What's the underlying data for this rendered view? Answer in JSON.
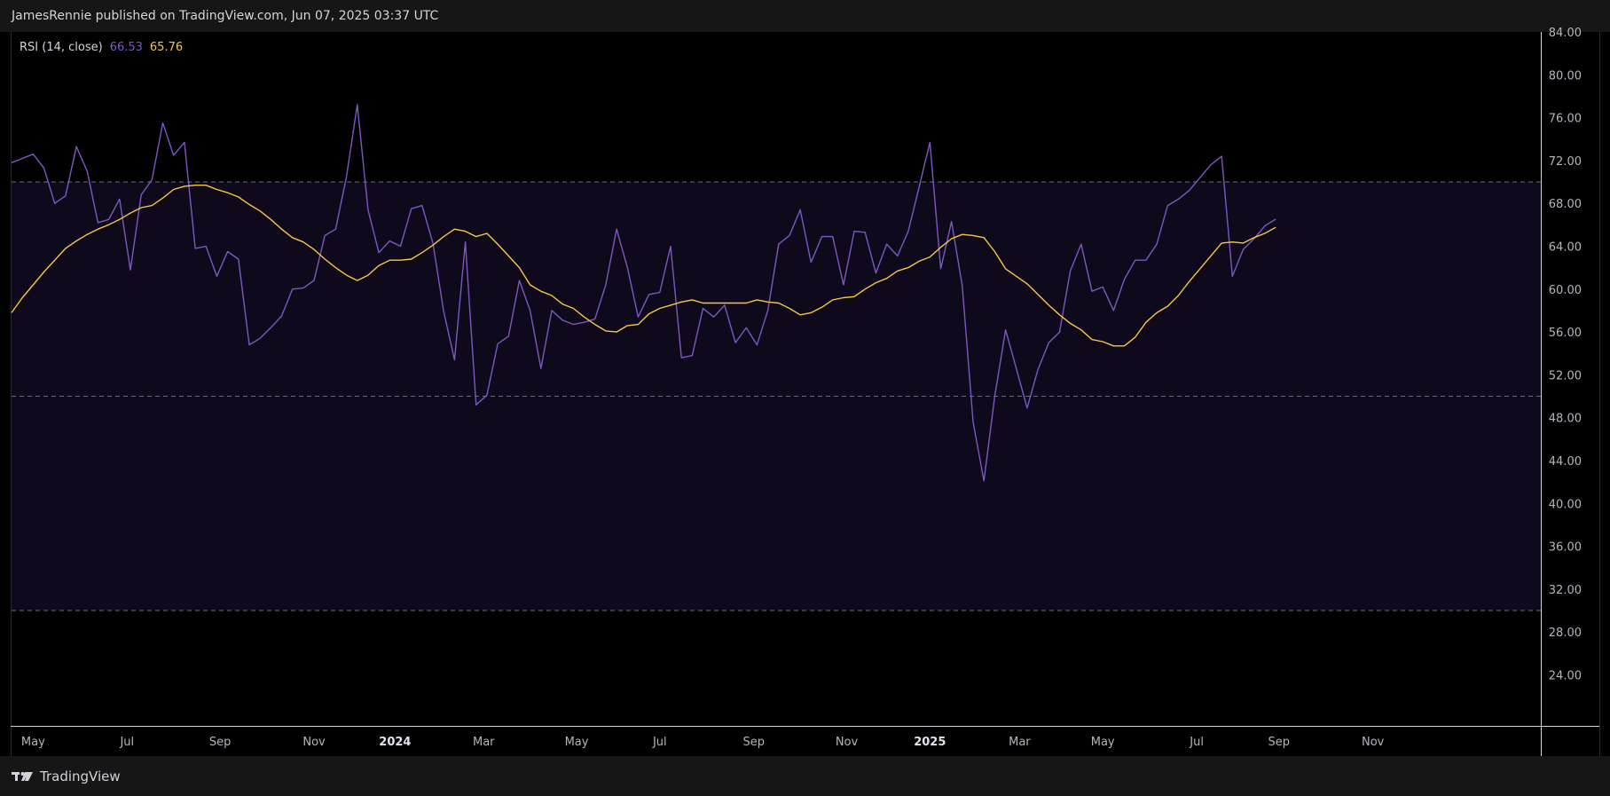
{
  "header": {
    "published": "JamesRennie published on TradingView.com, Jun 07, 2025 03:37 UTC"
  },
  "legend": {
    "name": "RSI (14, close)",
    "rsi_value": "66.53",
    "ma_value": "65.76"
  },
  "footer": {
    "brand": "TradingView",
    "logo_icon": "tradingview-logo-icon"
  },
  "colors": {
    "rsi": "#7e57c2",
    "ma": "#f7c744",
    "band_fill": "#0e0a1c",
    "bands": "#6e6a80",
    "background": "#000000"
  },
  "chart_data": {
    "type": "line",
    "title": "RSI (14, close)",
    "ylim": [
      22,
      85
    ],
    "y_ticks": [
      "84.00",
      "80.00",
      "76.00",
      "72.00",
      "68.00",
      "64.00",
      "60.00",
      "56.00",
      "52.00",
      "48.00",
      "44.00",
      "40.00",
      "36.00",
      "32.00",
      "28.00",
      "24.00"
    ],
    "x_ticks": [
      {
        "label": "May",
        "t": 2,
        "bold": false
      },
      {
        "label": "Jul",
        "t": 10.7,
        "bold": false
      },
      {
        "label": "Sep",
        "t": 19.3,
        "bold": false
      },
      {
        "label": "Nov",
        "t": 28,
        "bold": false
      },
      {
        "label": "2024",
        "t": 35.5,
        "bold": true
      },
      {
        "label": "Mar",
        "t": 43.7,
        "bold": false
      },
      {
        "label": "May",
        "t": 52.3,
        "bold": false
      },
      {
        "label": "Jul",
        "t": 60,
        "bold": false
      },
      {
        "label": "Sep",
        "t": 68.7,
        "bold": false
      },
      {
        "label": "Nov",
        "t": 77.3,
        "bold": false
      },
      {
        "label": "2025",
        "t": 85,
        "bold": true
      },
      {
        "label": "Mar",
        "t": 93.3,
        "bold": false
      },
      {
        "label": "May",
        "t": 101,
        "bold": false
      },
      {
        "label": "Jul",
        "t": 109.7,
        "bold": false
      },
      {
        "label": "Sep",
        "t": 117.3,
        "bold": false
      },
      {
        "label": "Nov",
        "t": 126,
        "bold": false
      }
    ],
    "levels": {
      "upper": 70,
      "middle": 50,
      "lower": 30
    },
    "series": [
      {
        "name": "RSI",
        "values": [
          71.8,
          72.2,
          72.6,
          71.3,
          68,
          68.7,
          73.3,
          71,
          66.2,
          66.5,
          68.4,
          61.8,
          68.8,
          70.2,
          75.5,
          72.5,
          73.7,
          63.8,
          64,
          61.2,
          63.5,
          62.8,
          54.8,
          55.4,
          56.4,
          57.5,
          60,
          60.1,
          60.8,
          65,
          65.6,
          70.5,
          77.2,
          67.4,
          63.4,
          64.5,
          64,
          67.5,
          67.8,
          64.3,
          57.9,
          53.4,
          64.4,
          49.2,
          50.1,
          54.9,
          55.6,
          60.8,
          58,
          52.6,
          58,
          57.1,
          56.7,
          56.9,
          57.2,
          60.4,
          65.6,
          62,
          57.4,
          59.5,
          59.7,
          64,
          53.6,
          53.8,
          58.2,
          57.4,
          58.5,
          55,
          56.4,
          54.8,
          58,
          64.2,
          65,
          67.4,
          62.5,
          64.9,
          64.9,
          60.4,
          65.4,
          65.3,
          61.5,
          64.2,
          63.1,
          65.4,
          69.5,
          73.7,
          61.9,
          66.3,
          60.3,
          47.6,
          42.1,
          50,
          56.2,
          52.6,
          48.9,
          52.5,
          55,
          56,
          61.7,
          64.2,
          59.8,
          60.2,
          58,
          60.9,
          62.7,
          62.7,
          64.2,
          67.8,
          68.4,
          69.2,
          70.4,
          71.6,
          72.4,
          61.2,
          63.7,
          64.7,
          65.9,
          66.53
        ]
      },
      {
        "name": "MA",
        "values": [
          57.8,
          59.2,
          60.4,
          61.6,
          62.7,
          63.8,
          64.5,
          65.1,
          65.6,
          66,
          66.5,
          67.1,
          67.6,
          67.8,
          68.5,
          69.3,
          69.6,
          69.7,
          69.7,
          69.3,
          69,
          68.6,
          67.9,
          67.3,
          66.5,
          65.6,
          64.8,
          64.4,
          63.7,
          62.8,
          62,
          61.3,
          60.8,
          61.3,
          62.2,
          62.7,
          62.7,
          62.8,
          63.4,
          64.1,
          64.9,
          65.6,
          65.4,
          64.9,
          65.2,
          64.2,
          63.1,
          62,
          60.4,
          59.8,
          59.4,
          58.6,
          58.2,
          57.4,
          56.7,
          56.1,
          56,
          56.6,
          56.7,
          57.7,
          58.2,
          58.5,
          58.8,
          59,
          58.7,
          58.7,
          58.7,
          58.7,
          58.7,
          59,
          58.8,
          58.7,
          58.2,
          57.6,
          57.8,
          58.3,
          59,
          59.2,
          59.3,
          60,
          60.6,
          61,
          61.7,
          62,
          62.6,
          63,
          63.9,
          64.7,
          65.1,
          65,
          64.8,
          63.5,
          61.9,
          61.2,
          60.5,
          59.5,
          58.5,
          57.6,
          56.8,
          56.2,
          55.3,
          55.1,
          54.7,
          54.7,
          55.5,
          56.9,
          57.8,
          58.4,
          59.4,
          60.7,
          61.9,
          63.1,
          64.3,
          64.4,
          64.3,
          64.8,
          65.2,
          65.76
        ]
      }
    ]
  }
}
